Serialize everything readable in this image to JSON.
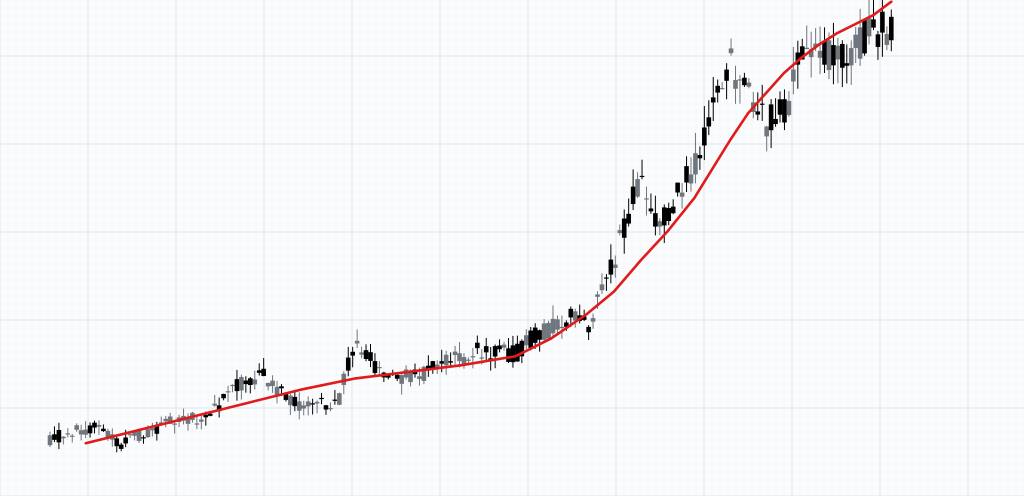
{
  "chart_data": {
    "type": "candlestick",
    "title": "",
    "xlabel": "",
    "ylabel": "",
    "grid": true,
    "legend": "none",
    "xlim": [
      0,
      100
    ],
    "ylim": [
      0,
      100
    ],
    "colors": {
      "background": "#fbfcfd",
      "grid_major": "#e3e9ee",
      "grid_minor": "#eef2f5",
      "candle_down": "#000000",
      "candle_up": "#6f767d",
      "ma_line": "#e01b1b"
    },
    "anchors": [
      [
        0,
        7
      ],
      [
        5,
        10
      ],
      [
        8,
        6
      ],
      [
        10,
        8
      ],
      [
        14,
        11
      ],
      [
        18,
        12
      ],
      [
        20,
        18
      ],
      [
        24,
        21
      ],
      [
        26,
        17
      ],
      [
        28,
        14
      ],
      [
        30,
        16
      ],
      [
        32,
        14
      ],
      [
        34,
        28
      ],
      [
        36,
        24
      ],
      [
        38,
        20
      ],
      [
        42,
        22
      ],
      [
        48,
        27
      ],
      [
        52,
        26
      ],
      [
        54,
        30
      ],
      [
        58,
        34
      ],
      [
        60,
        32
      ],
      [
        62,
        41
      ],
      [
        64,
        53
      ],
      [
        66,
        66
      ],
      [
        68,
        55
      ],
      [
        70,
        61
      ],
      [
        72,
        69
      ],
      [
        74,
        80
      ],
      [
        76,
        91
      ],
      [
        78,
        83
      ],
      [
        80,
        78
      ],
      [
        82,
        80
      ],
      [
        84,
        92
      ],
      [
        86,
        96
      ],
      [
        88,
        91
      ],
      [
        90,
        96
      ],
      [
        92,
        98
      ],
      [
        94,
        99
      ]
    ],
    "moving_average": {
      "x": [
        4,
        10,
        16,
        22,
        28,
        34,
        40,
        46,
        52,
        56,
        60,
        63,
        66,
        69,
        72,
        74,
        76,
        78,
        80,
        82,
        84,
        86,
        88,
        90,
        92,
        94
      ],
      "y": [
        6,
        9,
        12,
        15,
        18,
        20.5,
        22,
        23.5,
        25.5,
        29.5,
        35,
        40,
        47,
        53.5,
        61,
        67.5,
        74,
        80,
        84.5,
        89,
        92.5,
        95.5,
        98,
        100,
        102,
        105
      ]
    }
  }
}
